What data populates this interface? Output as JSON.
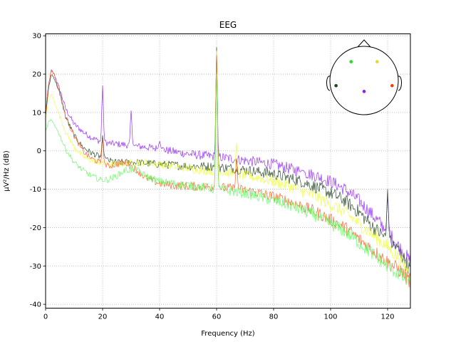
{
  "chart_data": {
    "type": "line",
    "title": "EEG",
    "xlabel": "Frequency (Hz)",
    "ylabel": "µV²/Hz (dB)",
    "xlim": [
      0,
      128
    ],
    "ylim": [
      -41,
      30.5
    ],
    "xticks": [
      0,
      20,
      40,
      60,
      80,
      100,
      120
    ],
    "yticks": [
      -40,
      -30,
      -20,
      -10,
      0,
      10,
      20,
      30
    ],
    "grid": true,
    "line_noise_hz": [
      60,
      120
    ],
    "series": [
      {
        "color": "#9933ff",
        "x": [
          0,
          1,
          2,
          3,
          5,
          7,
          10,
          13,
          16,
          19,
          22,
          25,
          28,
          32,
          35,
          40,
          45,
          50,
          55,
          60,
          65,
          70,
          75,
          80,
          85,
          90,
          95,
          100,
          105,
          110,
          115,
          120,
          124,
          128
        ],
        "y": [
          10,
          17,
          21,
          20,
          16,
          11,
          7,
          5,
          3.5,
          2.5,
          2,
          1.8,
          1.6,
          1.2,
          1.0,
          0.5,
          -0.2,
          -0.8,
          -1.2,
          -1.5,
          -2,
          -2.5,
          -3,
          -3.5,
          -4.5,
          -5.5,
          -6.5,
          -8,
          -10,
          -13,
          -17,
          -21,
          -25,
          -29
        ],
        "peaks": [
          [
            20,
            17
          ],
          [
            30,
            10.5
          ],
          [
            40,
            2.5
          ],
          [
            60,
            25
          ],
          [
            90,
            -5
          ],
          [
            120,
            -12
          ]
        ]
      },
      {
        "color": "#2f4f2f",
        "x": [
          0,
          1,
          2,
          3,
          5,
          7,
          10,
          13,
          16,
          19,
          22,
          25,
          28,
          32,
          35,
          40,
          45,
          50,
          55,
          60,
          65,
          70,
          75,
          80,
          85,
          90,
          95,
          100,
          105,
          110,
          115,
          120,
          124,
          128
        ],
        "y": [
          9,
          16,
          20,
          19,
          15,
          9,
          4,
          1,
          -0.5,
          -1.5,
          -2.5,
          -3,
          -3,
          -3,
          -3.2,
          -3.5,
          -3.7,
          -4,
          -4,
          -4.2,
          -4.5,
          -5,
          -5.5,
          -6,
          -7,
          -8,
          -9.5,
          -11,
          -13,
          -16,
          -20,
          -23,
          -26,
          -31
        ],
        "peaks": [
          [
            20,
            4
          ],
          [
            60,
            27
          ],
          [
            120,
            -10
          ]
        ]
      },
      {
        "color": "#eeff44",
        "x": [
          0,
          1,
          2,
          3,
          5,
          7,
          10,
          13,
          16,
          19,
          22,
          25,
          28,
          32,
          35,
          40,
          45,
          50,
          55,
          60,
          65,
          70,
          75,
          80,
          85,
          90,
          95,
          100,
          105,
          110,
          115,
          120,
          124,
          128
        ],
        "y": [
          8,
          13,
          15,
          13,
          9,
          5,
          1,
          -1.5,
          -2.5,
          -3,
          -3.5,
          -3.5,
          -3.2,
          -3,
          -3,
          -3.5,
          -4,
          -4.5,
          -5,
          -5.3,
          -5.8,
          -6.5,
          -7,
          -8,
          -9,
          -10.5,
          -12,
          -14,
          -16,
          -19,
          -22,
          -25,
          -28,
          -32
        ],
        "peaks": [
          [
            60,
            26
          ],
          [
            67,
            2
          ]
        ]
      },
      {
        "color": "#ff6633",
        "x": [
          0,
          1,
          2,
          3,
          5,
          7,
          10,
          13,
          16,
          19,
          22,
          25,
          28,
          32,
          35,
          40,
          45,
          50,
          55,
          60,
          65,
          70,
          75,
          80,
          85,
          90,
          95,
          100,
          105,
          110,
          115,
          120,
          124,
          128
        ],
        "y": [
          10,
          17,
          21,
          20,
          15,
          9,
          4,
          0,
          -2,
          -3,
          -4,
          -3.5,
          -3,
          -5,
          -7,
          -8.5,
          -9,
          -9.2,
          -9.3,
          -9.5,
          -9.8,
          -10.3,
          -11,
          -12,
          -13,
          -14.5,
          -16,
          -18,
          -20,
          -23,
          -26,
          -29,
          -31,
          -34
        ],
        "peaks": [
          [
            20,
            3
          ],
          [
            60,
            25
          ],
          [
            67,
            -2
          ]
        ]
      },
      {
        "color": "#66ff66",
        "x": [
          0,
          1,
          2,
          3,
          5,
          7,
          10,
          13,
          16,
          19,
          22,
          25,
          28,
          32,
          35,
          40,
          45,
          50,
          55,
          60,
          65,
          70,
          75,
          80,
          85,
          90,
          95,
          100,
          105,
          110,
          115,
          120,
          124,
          128
        ],
        "y": [
          5,
          7.5,
          8,
          7,
          4,
          0.5,
          -3,
          -5,
          -6.5,
          -7.5,
          -7.5,
          -6.5,
          -5,
          -5,
          -6.5,
          -8,
          -8.5,
          -9,
          -9.5,
          -10,
          -10.5,
          -11,
          -12,
          -13,
          -14,
          -15.5,
          -17,
          -19,
          -21,
          -24,
          -27,
          -30,
          -32,
          -35
        ],
        "peaks": [
          [
            60,
            20
          ]
        ]
      }
    ],
    "inset": {
      "sensors": [
        {
          "color": "#22dd22",
          "x": -0.38,
          "y": 0.55
        },
        {
          "color": "#dddd22",
          "x": 0.38,
          "y": 0.55
        },
        {
          "color": "#224422",
          "x": -0.82,
          "y": -0.15
        },
        {
          "color": "#ee4400",
          "x": 0.82,
          "y": -0.15
        },
        {
          "color": "#8822ee",
          "x": 0.0,
          "y": -0.32
        }
      ]
    }
  }
}
